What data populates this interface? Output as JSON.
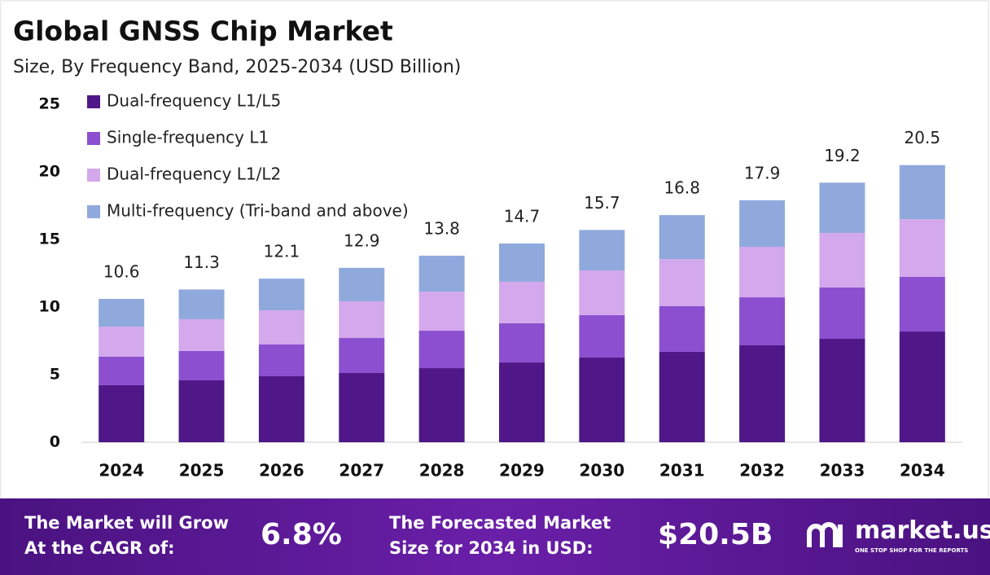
{
  "chart_data": {
    "type": "stacked_bar",
    "title": "Global GNSS Chip Market",
    "subtitle": "Size, By Frequency Band, 2025-2034 (USD Billion)",
    "categories": [
      "2024",
      "2025",
      "2026",
      "2027",
      "2028",
      "2029",
      "2030",
      "2031",
      "2032",
      "2033",
      "2034"
    ],
    "series": [
      {
        "name": "Dual-frequency L1/L5",
        "color": "#4f1787",
        "values": [
          4.22,
          4.58,
          4.88,
          5.12,
          5.48,
          5.9,
          6.27,
          6.69,
          7.17,
          7.65,
          8.19
        ]
      },
      {
        "name": "Single-frequency L1",
        "color": "#8b4fd0",
        "values": [
          2.11,
          2.17,
          2.35,
          2.59,
          2.77,
          2.9,
          3.13,
          3.37,
          3.55,
          3.8,
          4.04
        ]
      },
      {
        "name": "Dual-frequency L1/L2",
        "color": "#d4a8ec",
        "values": [
          2.22,
          2.35,
          2.53,
          2.71,
          2.89,
          3.07,
          3.31,
          3.49,
          3.74,
          4.03,
          4.27
        ]
      },
      {
        "name": "Multi-frequency (Tri-band and above)",
        "color": "#8fa9dd",
        "values": [
          2.05,
          2.2,
          2.34,
          2.48,
          2.66,
          2.83,
          2.99,
          3.25,
          3.44,
          3.72,
          4.0
        ]
      }
    ],
    "totals": [
      10.6,
      11.3,
      12.1,
      12.9,
      13.8,
      14.7,
      15.7,
      16.8,
      17.9,
      19.2,
      20.5
    ],
    "ylim": [
      0,
      25
    ],
    "yticks": [
      0,
      5,
      10,
      15,
      20,
      25
    ]
  },
  "footer": {
    "cagr_label": [
      "The Market will Grow",
      "At the CAGR of:"
    ],
    "cagr_value": "6.8%",
    "size_label": [
      "The Forecasted Market",
      "Size for 2034 in USD:"
    ],
    "size_value": "$20.5B",
    "logo": "market.us",
    "tagline": "ONE STOP SHOP FOR THE REPORTS"
  }
}
